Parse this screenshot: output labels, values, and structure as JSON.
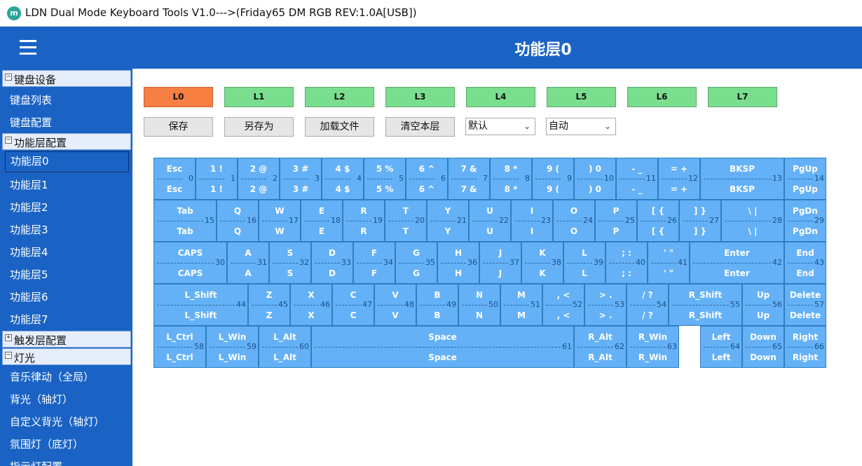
{
  "window": {
    "icon": "ldn-app-icon",
    "title": "LDN Dual Mode Keyboard Tools V1.0--->(Friday65 DM RGB REV:1.0A[USB])"
  },
  "header": {
    "menu_icon": "hamburger-menu-icon",
    "title": "功能层0"
  },
  "sidebar": {
    "items": [
      {
        "type": "group",
        "label": "键盘设备",
        "expander": "⊟"
      },
      {
        "type": "item",
        "label": "键盘列表"
      },
      {
        "type": "item",
        "label": "键盘配置"
      },
      {
        "type": "group",
        "label": "功能层配置",
        "expander": "⊟"
      },
      {
        "type": "item",
        "label": "功能层0",
        "selected": true
      },
      {
        "type": "item",
        "label": "功能层1"
      },
      {
        "type": "item",
        "label": "功能层2"
      },
      {
        "type": "item",
        "label": "功能层3"
      },
      {
        "type": "item",
        "label": "功能层4"
      },
      {
        "type": "item",
        "label": "功能层5"
      },
      {
        "type": "item",
        "label": "功能层6"
      },
      {
        "type": "item",
        "label": "功能层7"
      },
      {
        "type": "group",
        "label": "触发层配置",
        "expander": "⊞"
      },
      {
        "type": "group",
        "label": "灯光",
        "expander": "⊟"
      },
      {
        "type": "item",
        "label": "音乐律动（全局）"
      },
      {
        "type": "item",
        "label": "背光（轴灯）"
      },
      {
        "type": "item",
        "label": "自定义背光（轴灯）"
      },
      {
        "type": "item",
        "label": "氛围灯（底灯）"
      },
      {
        "type": "item",
        "label": "指示灯配置"
      }
    ]
  },
  "layers": {
    "active": "L0",
    "items": [
      "L0",
      "L1",
      "L2",
      "L3",
      "L4",
      "L5",
      "L6",
      "L7"
    ]
  },
  "actions": {
    "save": "保存",
    "save_as": "另存为",
    "load_file": "加载文件",
    "clear_layer": "清空本层"
  },
  "selects": {
    "mode": "默认",
    "speed": "自动"
  },
  "colors": {
    "header_bg": "#1a63c5",
    "key_bg": "#64b1f7",
    "layer_active": "#f77f42",
    "layer_inactive": "#7ade8f"
  },
  "keyboard": {
    "rows": [
      [
        {
          "top": "Esc",
          "bot": "Esc",
          "idx": "0"
        },
        {
          "top": "1 !",
          "bot": "1 !",
          "idx": "1"
        },
        {
          "top": "2 @",
          "bot": "2 @",
          "idx": "2"
        },
        {
          "top": "3 #",
          "bot": "3 #",
          "idx": "3"
        },
        {
          "top": "4 $",
          "bot": "4 $",
          "idx": "4"
        },
        {
          "top": "5 %",
          "bot": "5 %",
          "idx": "5"
        },
        {
          "top": "6 ^",
          "bot": "6 ^",
          "idx": "6"
        },
        {
          "top": "7 &",
          "bot": "7 &",
          "idx": "7"
        },
        {
          "top": "8 *",
          "bot": "8 *",
          "idx": "8"
        },
        {
          "top": "9 (",
          "bot": "9 (",
          "idx": "9"
        },
        {
          "top": ") 0",
          "bot": ") 0",
          "idx": "10"
        },
        {
          "top": "- _",
          "bot": "- _",
          "idx": "11"
        },
        {
          "top": "= +",
          "bot": "= +",
          "idx": "12"
        },
        {
          "top": "BKSP",
          "bot": "BKSP",
          "idx": "13"
        },
        {
          "top": "PgUp",
          "bot": "PgUp",
          "idx": "14"
        }
      ],
      [
        {
          "top": "Tab",
          "bot": "Tab",
          "idx": "15"
        },
        {
          "top": "Q",
          "bot": "Q",
          "idx": "16"
        },
        {
          "top": "W",
          "bot": "W",
          "idx": "17"
        },
        {
          "top": "E",
          "bot": "E",
          "idx": "18"
        },
        {
          "top": "R",
          "bot": "R",
          "idx": "19"
        },
        {
          "top": "T",
          "bot": "T",
          "idx": "20"
        },
        {
          "top": "Y",
          "bot": "Y",
          "idx": "21"
        },
        {
          "top": "U",
          "bot": "U",
          "idx": "22"
        },
        {
          "top": "I",
          "bot": "I",
          "idx": "23"
        },
        {
          "top": "O",
          "bot": "O",
          "idx": "24"
        },
        {
          "top": "P",
          "bot": "P",
          "idx": "25"
        },
        {
          "top": "[ {",
          "bot": "[ {",
          "idx": "26"
        },
        {
          "top": "] }",
          "bot": "] }",
          "idx": "27"
        },
        {
          "top": "\\ |",
          "bot": "\\ |",
          "idx": "28"
        },
        {
          "top": "PgDn",
          "bot": "PgDn",
          "idx": "29"
        }
      ],
      [
        {
          "top": "CAPS",
          "bot": "CAPS",
          "idx": "30"
        },
        {
          "top": "A",
          "bot": "A",
          "idx": "31"
        },
        {
          "top": "S",
          "bot": "S",
          "idx": "32"
        },
        {
          "top": "D",
          "bot": "D",
          "idx": "33"
        },
        {
          "top": "F",
          "bot": "F",
          "idx": "34"
        },
        {
          "top": "G",
          "bot": "G",
          "idx": "35"
        },
        {
          "top": "H",
          "bot": "H",
          "idx": "36"
        },
        {
          "top": "J",
          "bot": "J",
          "idx": "37"
        },
        {
          "top": "K",
          "bot": "K",
          "idx": "38"
        },
        {
          "top": "L",
          "bot": "L",
          "idx": "39"
        },
        {
          "top": "; :",
          "bot": "; :",
          "idx": "40"
        },
        {
          "top": "' \"",
          "bot": "' \"",
          "idx": "41"
        },
        {
          "top": "Enter",
          "bot": "Enter",
          "idx": "42"
        },
        {
          "top": "End",
          "bot": "End",
          "idx": "43"
        }
      ],
      [
        {
          "top": "L_Shift",
          "bot": "L_Shift",
          "idx": "44"
        },
        {
          "top": "Z",
          "bot": "Z",
          "idx": "45"
        },
        {
          "top": "X",
          "bot": "X",
          "idx": "46"
        },
        {
          "top": "C",
          "bot": "C",
          "idx": "47"
        },
        {
          "top": "V",
          "bot": "V",
          "idx": "48"
        },
        {
          "top": "B",
          "bot": "B",
          "idx": "49"
        },
        {
          "top": "N",
          "bot": "N",
          "idx": "50"
        },
        {
          "top": "M",
          "bot": "M",
          "idx": "51"
        },
        {
          "top": ", <",
          "bot": ", <",
          "idx": "52"
        },
        {
          "top": "> .",
          "bot": "> .",
          "idx": "53"
        },
        {
          "top": "/ ?",
          "bot": "/ ?",
          "idx": "54"
        },
        {
          "top": "R_Shift",
          "bot": "R_Shift",
          "idx": "55"
        },
        {
          "top": "Up",
          "bot": "Up",
          "idx": "56"
        },
        {
          "top": "Delete",
          "bot": "Delete",
          "idx": "57"
        }
      ],
      [
        {
          "top": "L_Ctrl",
          "bot": "L_Ctrl",
          "idx": "58"
        },
        {
          "top": "L_Win",
          "bot": "L_Win",
          "idx": "59"
        },
        {
          "top": "L_Alt",
          "bot": "L_Alt",
          "idx": "60"
        },
        {
          "top": "Space",
          "bot": "Space",
          "idx": "61"
        },
        {
          "top": "R_Alt",
          "bot": "R_Alt",
          "idx": "62"
        },
        {
          "top": "R_Win",
          "bot": "R_Win",
          "idx": "63"
        },
        {
          "top": "Left",
          "bot": "Left",
          "idx": "64"
        },
        {
          "top": "Down",
          "bot": "Down",
          "idx": "65"
        },
        {
          "top": "Right",
          "bot": "Right",
          "idx": "66"
        }
      ]
    ]
  }
}
